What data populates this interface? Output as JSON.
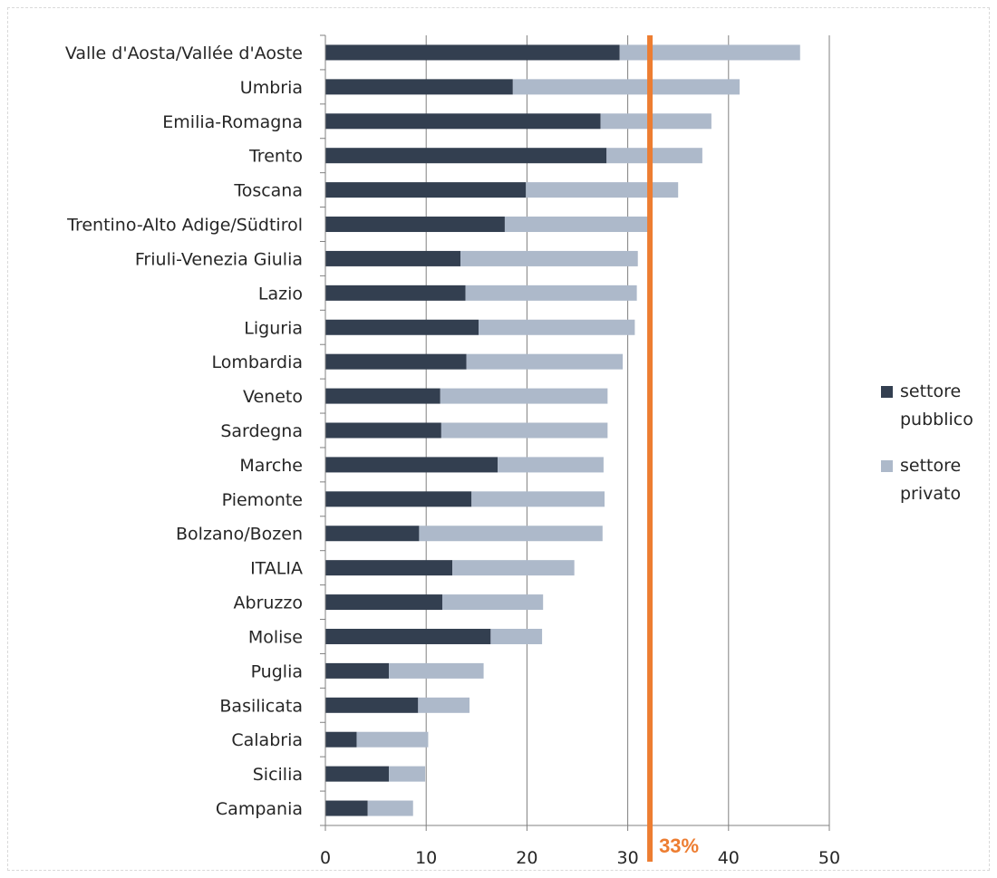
{
  "chart_data": {
    "type": "bar",
    "orientation": "horizontal",
    "stacked": true,
    "categories": [
      "Valle d'Aosta/Vallée d'Aoste",
      "Umbria",
      "Emilia-Romagna",
      "Trento",
      "Toscana",
      "Trentino-Alto Adige/Südtirol",
      "Friuli-Venezia Giulia",
      "Lazio",
      "Liguria",
      "Lombardia",
      "Veneto",
      "Sardegna",
      "Marche",
      "Piemonte",
      "Bolzano/Bozen",
      "ITALIA",
      "Abruzzo",
      "Molise",
      "Puglia",
      "Basilicata",
      "Calabria",
      "Sicilia",
      "Campania"
    ],
    "series": [
      {
        "name": "settore pubblico",
        "color": "#333f50",
        "values": [
          29.2,
          18.6,
          27.3,
          27.9,
          19.9,
          17.8,
          13.4,
          13.9,
          15.2,
          14.0,
          11.4,
          11.5,
          17.1,
          14.5,
          9.3,
          12.6,
          11.6,
          16.4,
          6.3,
          9.2,
          3.1,
          6.3,
          4.2
        ]
      },
      {
        "name": "settore privato",
        "color": "#adb9ca",
        "values": [
          17.9,
          22.5,
          11.0,
          9.5,
          15.1,
          14.2,
          17.6,
          17.0,
          15.5,
          15.5,
          16.6,
          16.5,
          10.5,
          13.2,
          18.2,
          12.1,
          10.0,
          5.1,
          9.4,
          5.1,
          7.1,
          3.6,
          4.5
        ]
      }
    ],
    "xlim": [
      0,
      50
    ],
    "xticks": [
      "0",
      "10",
      "20",
      "30",
      "40",
      "50"
    ],
    "grid": true,
    "legend_position": "right",
    "reference_line": {
      "value": 32.2,
      "label": "33%",
      "color": "#ed7d31"
    },
    "axis_color": "#808080",
    "grid_color": "#808080"
  }
}
